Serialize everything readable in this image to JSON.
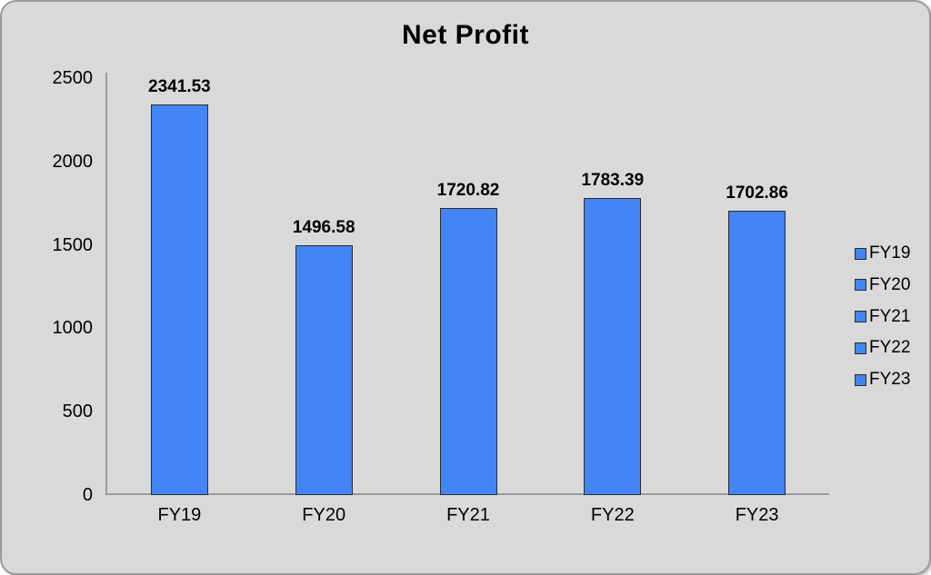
{
  "chart_data": {
    "type": "bar",
    "title": "Net Profit",
    "categories": [
      "FY19",
      "FY20",
      "FY21",
      "FY22",
      "FY23"
    ],
    "values": [
      2341.53,
      1496.58,
      1720.82,
      1783.39,
      1702.86
    ],
    "value_labels": [
      "2341.53",
      "1496.58",
      "1720.82",
      "1783.39",
      "1702.86"
    ],
    "xlabel": "",
    "ylabel": "",
    "ylim": [
      0,
      2500
    ],
    "yticks": [
      0,
      500,
      1000,
      1500,
      2000,
      2500
    ],
    "ytick_labels": [
      "0",
      "500",
      "1000",
      "1500",
      "2000",
      "2500"
    ],
    "grid": false,
    "legend": {
      "position": "right",
      "entries": [
        "FY19",
        "FY20",
        "FY21",
        "FY22",
        "FY23"
      ]
    }
  },
  "colors": {
    "bar_fill": "#4285f4",
    "bar_border": "#2b2b2b",
    "card_background": "#d9d9d9",
    "card_border": "#9a9a9a",
    "axis_line": "#9b9b9b",
    "text": "#000000"
  }
}
